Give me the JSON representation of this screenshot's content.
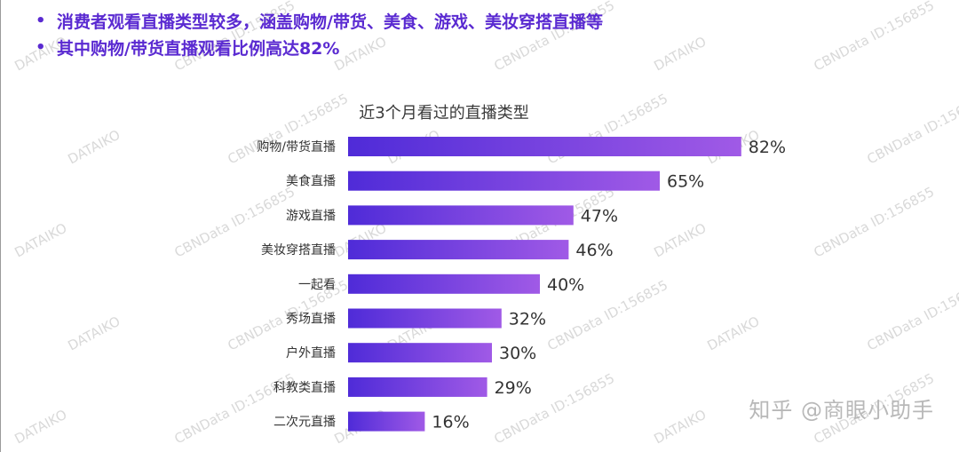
{
  "colors": {
    "bar_start": "#4f2bd8",
    "bar_end": "#a05ae6",
    "bullet_text": "#5a2ad1",
    "label_text": "#333333",
    "value_text": "#333333",
    "watermark": "#d9d9d9"
  },
  "bullets": [
    "消费者观看直播类型较多，涵盖购物/带货、美食、游戏、美妆穿搭直播等",
    "其中购物/带货直播观看比例高达82%"
  ],
  "bullet_symbol": "•",
  "watermark": {
    "text_a": "DATAIKO",
    "text_b": "CBNData ID:156855"
  },
  "footer_credit": "知乎 @商眼小助手",
  "chart_data": {
    "type": "bar",
    "orientation": "horizontal",
    "title": "近3个月看过的直播类型",
    "categories": [
      "购物/带货直播",
      "美食直播",
      "游戏直播",
      "美妆穿搭直播",
      "一起看",
      "秀场直播",
      "户外直播",
      "科教类直播",
      "二次元直播"
    ],
    "values": [
      82,
      65,
      47,
      46,
      40,
      32,
      30,
      29,
      16
    ],
    "value_labels": [
      "82%",
      "65%",
      "47%",
      "46%",
      "40%",
      "32%",
      "30%",
      "29%",
      "16%"
    ],
    "unit": "%",
    "xlim": [
      0,
      100
    ],
    "grid": false,
    "legend": "none"
  }
}
